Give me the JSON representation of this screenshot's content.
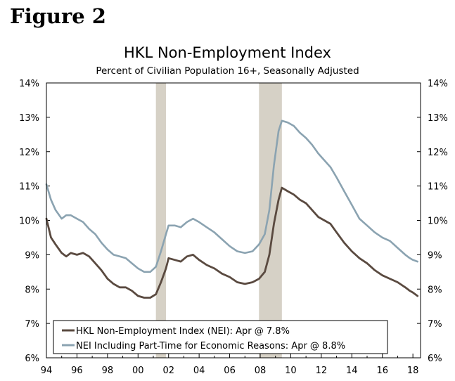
{
  "figure_label": "Figure 2",
  "chart_data": {
    "type": "line",
    "title": "HKL Non-Employment Index",
    "subtitle": "Percent of Civilian Population 16+, Seasonally Adjusted",
    "xlabel": "",
    "ylabel": "",
    "xlim": [
      1994,
      2018.5
    ],
    "ylim": [
      6,
      14
    ],
    "x_ticks": [
      "94",
      "96",
      "98",
      "00",
      "02",
      "04",
      "06",
      "08",
      "10",
      "12",
      "14",
      "16",
      "18"
    ],
    "y_ticks": [
      "6%",
      "7%",
      "8%",
      "9%",
      "10%",
      "11%",
      "12%",
      "13%",
      "14%"
    ],
    "y_ticks_right": [
      "6%",
      "7%",
      "8%",
      "9%",
      "10%",
      "11%",
      "12%",
      "13%",
      "14%"
    ],
    "recessions": [
      [
        2001.17,
        2001.83
      ],
      [
        2007.92,
        2009.42
      ]
    ],
    "legend_position": "bottom-left",
    "series": [
      {
        "name": "HKL Non-Employment Index (NEI): Apr @ 7.8%",
        "color": "#5a4a40",
        "points": [
          [
            1994.0,
            10.05
          ],
          [
            1994.3,
            9.5
          ],
          [
            1994.6,
            9.3
          ],
          [
            1995.0,
            9.05
          ],
          [
            1995.3,
            8.95
          ],
          [
            1995.6,
            9.05
          ],
          [
            1996.0,
            9.0
          ],
          [
            1996.4,
            9.05
          ],
          [
            1996.8,
            8.95
          ],
          [
            1997.2,
            8.75
          ],
          [
            1997.6,
            8.55
          ],
          [
            1998.0,
            8.3
          ],
          [
            1998.4,
            8.15
          ],
          [
            1998.8,
            8.05
          ],
          [
            1999.2,
            8.05
          ],
          [
            1999.6,
            7.95
          ],
          [
            2000.0,
            7.8
          ],
          [
            2000.4,
            7.75
          ],
          [
            2000.8,
            7.75
          ],
          [
            2001.17,
            7.85
          ],
          [
            2001.5,
            8.2
          ],
          [
            2001.83,
            8.6
          ],
          [
            2002.0,
            8.9
          ],
          [
            2002.4,
            8.85
          ],
          [
            2002.8,
            8.8
          ],
          [
            2003.2,
            8.95
          ],
          [
            2003.6,
            9.0
          ],
          [
            2004.0,
            8.85
          ],
          [
            2004.5,
            8.7
          ],
          [
            2005.0,
            8.6
          ],
          [
            2005.5,
            8.45
          ],
          [
            2006.0,
            8.35
          ],
          [
            2006.5,
            8.2
          ],
          [
            2007.0,
            8.15
          ],
          [
            2007.5,
            8.2
          ],
          [
            2007.92,
            8.3
          ],
          [
            2008.3,
            8.5
          ],
          [
            2008.6,
            9.0
          ],
          [
            2008.9,
            9.9
          ],
          [
            2009.2,
            10.6
          ],
          [
            2009.42,
            10.95
          ],
          [
            2009.8,
            10.85
          ],
          [
            2010.2,
            10.75
          ],
          [
            2010.6,
            10.6
          ],
          [
            2011.0,
            10.5
          ],
          [
            2011.4,
            10.3
          ],
          [
            2011.8,
            10.1
          ],
          [
            2012.2,
            10.0
          ],
          [
            2012.6,
            9.9
          ],
          [
            2013.0,
            9.65
          ],
          [
            2013.5,
            9.35
          ],
          [
            2014.0,
            9.1
          ],
          [
            2014.5,
            8.9
          ],
          [
            2015.0,
            8.75
          ],
          [
            2015.5,
            8.55
          ],
          [
            2016.0,
            8.4
          ],
          [
            2016.5,
            8.3
          ],
          [
            2017.0,
            8.2
          ],
          [
            2017.5,
            8.05
          ],
          [
            2017.8,
            7.95
          ],
          [
            2018.0,
            7.9
          ],
          [
            2018.3,
            7.8
          ]
        ]
      },
      {
        "name": "NEI Including Part-Time for Economic Reasons: Apr @ 8.8%",
        "color": "#8ba3b1",
        "points": [
          [
            1994.0,
            11.05
          ],
          [
            1994.3,
            10.6
          ],
          [
            1994.6,
            10.3
          ],
          [
            1995.0,
            10.05
          ],
          [
            1995.3,
            10.15
          ],
          [
            1995.6,
            10.15
          ],
          [
            1996.0,
            10.05
          ],
          [
            1996.4,
            9.95
          ],
          [
            1996.8,
            9.75
          ],
          [
            1997.2,
            9.6
          ],
          [
            1997.6,
            9.35
          ],
          [
            1998.0,
            9.15
          ],
          [
            1998.4,
            9.0
          ],
          [
            1998.8,
            8.95
          ],
          [
            1999.2,
            8.9
          ],
          [
            1999.6,
            8.75
          ],
          [
            2000.0,
            8.6
          ],
          [
            2000.4,
            8.5
          ],
          [
            2000.8,
            8.5
          ],
          [
            2001.17,
            8.65
          ],
          [
            2001.5,
            9.1
          ],
          [
            2001.83,
            9.6
          ],
          [
            2002.0,
            9.85
          ],
          [
            2002.4,
            9.85
          ],
          [
            2002.8,
            9.8
          ],
          [
            2003.2,
            9.95
          ],
          [
            2003.6,
            10.05
          ],
          [
            2004.0,
            9.95
          ],
          [
            2004.5,
            9.8
          ],
          [
            2005.0,
            9.65
          ],
          [
            2005.5,
            9.45
          ],
          [
            2006.0,
            9.25
          ],
          [
            2006.5,
            9.1
          ],
          [
            2007.0,
            9.05
          ],
          [
            2007.5,
            9.1
          ],
          [
            2007.92,
            9.3
          ],
          [
            2008.3,
            9.6
          ],
          [
            2008.6,
            10.3
          ],
          [
            2008.9,
            11.6
          ],
          [
            2009.2,
            12.6
          ],
          [
            2009.42,
            12.9
          ],
          [
            2009.8,
            12.85
          ],
          [
            2010.2,
            12.75
          ],
          [
            2010.6,
            12.55
          ],
          [
            2011.0,
            12.4
          ],
          [
            2011.4,
            12.2
          ],
          [
            2011.8,
            11.95
          ],
          [
            2012.2,
            11.75
          ],
          [
            2012.6,
            11.55
          ],
          [
            2013.0,
            11.25
          ],
          [
            2013.5,
            10.85
          ],
          [
            2014.0,
            10.45
          ],
          [
            2014.5,
            10.05
          ],
          [
            2015.0,
            9.85
          ],
          [
            2015.5,
            9.65
          ],
          [
            2016.0,
            9.5
          ],
          [
            2016.5,
            9.4
          ],
          [
            2017.0,
            9.2
          ],
          [
            2017.5,
            9.0
          ],
          [
            2017.8,
            8.9
          ],
          [
            2018.0,
            8.85
          ],
          [
            2018.3,
            8.8
          ]
        ]
      }
    ]
  }
}
